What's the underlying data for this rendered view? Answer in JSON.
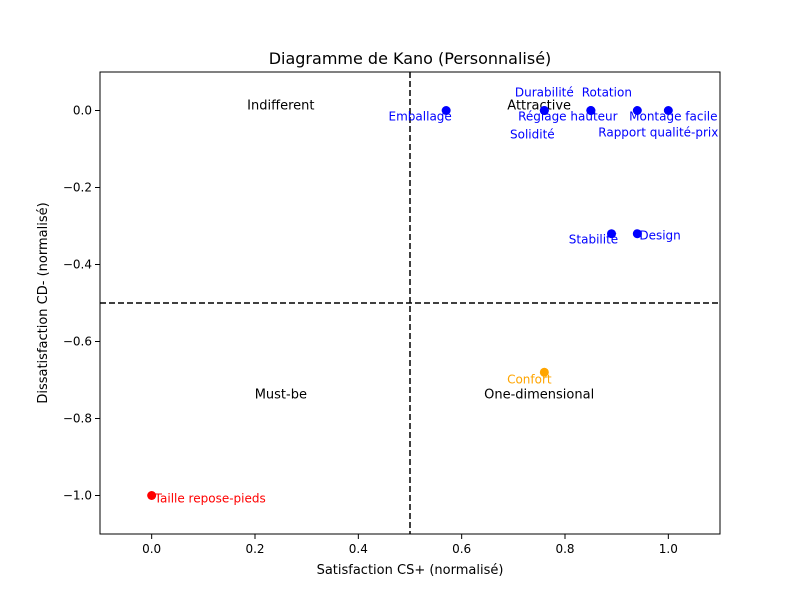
{
  "chart_data": {
    "type": "scatter",
    "title": "Diagramme de Kano (Personnalisé)",
    "xlabel": "Satisfaction CS+ (normalisé)",
    "ylabel": "Dissatisfaction CD- (normalisé)",
    "xlim": [
      -0.1,
      1.1
    ],
    "ylim": [
      -1.1,
      0.1
    ],
    "x_ticks": [
      "0.0",
      "0.2",
      "0.4",
      "0.6",
      "0.8",
      "1.0"
    ],
    "y_ticks": [
      "0.0",
      "−0.2",
      "−0.4",
      "−0.6",
      "−0.8",
      "−1.0"
    ],
    "threshold_x": 0.5,
    "threshold_y": -0.5,
    "grid": false,
    "quadrants": [
      {
        "label": "Indifferent",
        "x": 0.25,
        "y": 0.0
      },
      {
        "label": "Attractive",
        "x": 0.75,
        "y": 0.0
      },
      {
        "label": "Must-be",
        "x": 0.25,
        "y": -0.75
      },
      {
        "label": "One-dimensional",
        "x": 0.75,
        "y": -0.75
      }
    ],
    "colors": {
      "attractive": "#0000ff",
      "one_dimensional": "#ffa500",
      "must_be": "#ff0000"
    },
    "points": [
      {
        "label": "Emballage",
        "x": 0.57,
        "y": 0.0,
        "category": "attractive"
      },
      {
        "label": "Durabilité",
        "x": 0.76,
        "y": 0.0,
        "category": "attractive"
      },
      {
        "label": "Solidité",
        "x": 0.76,
        "y": 0.0,
        "category": "attractive"
      },
      {
        "label": "Rotation",
        "x": 0.85,
        "y": 0.0,
        "category": "attractive"
      },
      {
        "label": "Réglage hauteur",
        "x": 0.85,
        "y": 0.0,
        "category": "attractive"
      },
      {
        "label": "Rapport qualité-prix",
        "x": 0.94,
        "y": 0.0,
        "category": "attractive"
      },
      {
        "label": "Montage facile",
        "x": 1.0,
        "y": 0.0,
        "category": "attractive"
      },
      {
        "label": "Stabilité",
        "x": 0.89,
        "y": -0.32,
        "category": "attractive"
      },
      {
        "label": "Design",
        "x": 0.94,
        "y": -0.32,
        "category": "attractive"
      },
      {
        "label": "Confort",
        "x": 0.76,
        "y": -0.68,
        "category": "one_dimensional"
      },
      {
        "label": "Taille repose-pieds",
        "x": 0.0,
        "y": -1.0,
        "category": "must_be"
      }
    ]
  }
}
